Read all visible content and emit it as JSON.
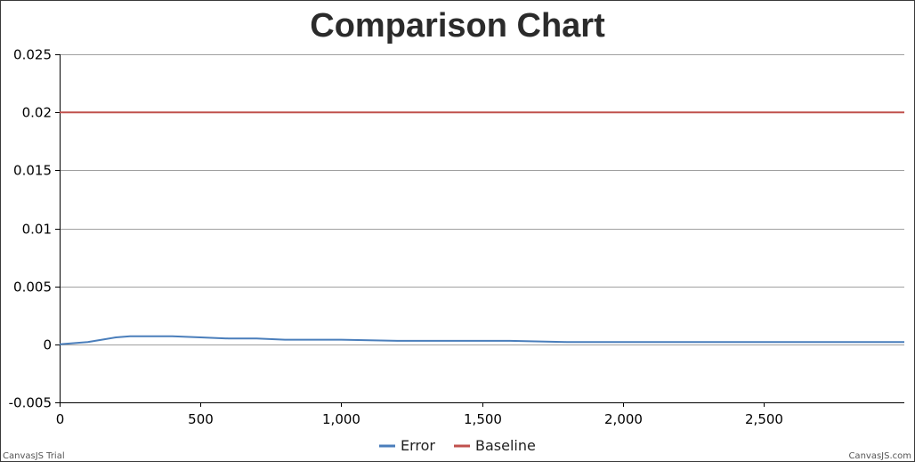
{
  "chart_data": {
    "type": "line",
    "title": "Comparison Chart",
    "xlabel": "",
    "ylabel": "",
    "xlim": [
      0,
      3000
    ],
    "ylim": [
      -0.005,
      0.025
    ],
    "x_ticks": [
      0,
      500,
      1000,
      1500,
      2000,
      2500
    ],
    "x_tick_labels": [
      "0",
      "500",
      "1,000",
      "1,500",
      "2,000",
      "2,500"
    ],
    "y_ticks": [
      -0.005,
      0,
      0.005,
      0.01,
      0.015,
      0.02,
      0.025
    ],
    "y_tick_labels": [
      "-0.005",
      "0",
      "0.005",
      "0.01",
      "0.015",
      "0.02",
      "0.025"
    ],
    "grid": "horizontal",
    "legend": "bottom-center",
    "series": [
      {
        "name": "Error",
        "color": "#4a7ebb",
        "x": [
          0,
          50,
          100,
          150,
          200,
          250,
          300,
          350,
          400,
          500,
          600,
          700,
          800,
          900,
          1000,
          1200,
          1400,
          1600,
          1800,
          2000,
          2200,
          2400,
          2600,
          2800,
          3000
        ],
        "y": [
          0,
          0.0001,
          0.0002,
          0.0004,
          0.0006,
          0.0007,
          0.0007,
          0.0007,
          0.0007,
          0.0006,
          0.0005,
          0.0005,
          0.0004,
          0.0004,
          0.0004,
          0.0003,
          0.0003,
          0.0003,
          0.0002,
          0.0002,
          0.0002,
          0.0002,
          0.0002,
          0.0002,
          0.0002
        ]
      },
      {
        "name": "Baseline",
        "color": "#c0504d",
        "x": [
          0,
          3000
        ],
        "y": [
          0.02,
          0.02
        ]
      }
    ]
  },
  "credits": {
    "left": "CanvasJS Trial",
    "right": "CanvasJS.com"
  }
}
